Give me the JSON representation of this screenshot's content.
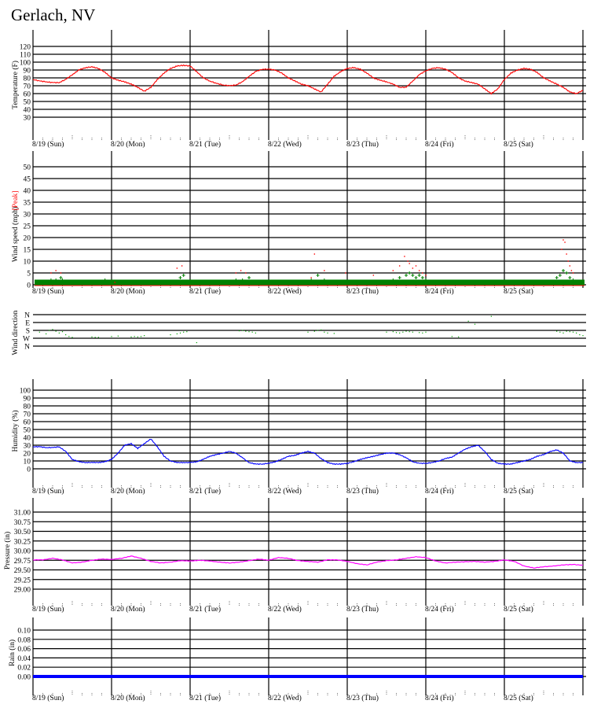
{
  "title": "Gerlach, NV",
  "days": [
    "8/19 (Sun)",
    "8/20 (Mon)",
    "8/21 (Tue)",
    "8/22 (Wed)",
    "8/23 (Thu)",
    "8/24 (Fri)",
    "8/25 (Sat)"
  ],
  "colors": {
    "temperature": "#ff0000",
    "wind_peak": "#ff0000",
    "wind_avg": "#008000",
    "wind_dir": "#00a000",
    "humidity": "#0000ff",
    "pressure": "#ff00ff",
    "rain": "#0000ff",
    "grid": "#000000"
  },
  "chart_data": [
    {
      "id": "temperature",
      "type": "line",
      "ylabel": "Temperature (F)",
      "ylim": [
        20,
        130
      ],
      "yticks": [
        "30",
        "40",
        "50",
        "60",
        "70",
        "80",
        "90",
        "100",
        "110",
        "120"
      ],
      "x": [
        0,
        2,
        4,
        6,
        8,
        10,
        12,
        14,
        16,
        18,
        20,
        22,
        24,
        26,
        28,
        30,
        32,
        34,
        36,
        38,
        40,
        42,
        44,
        46,
        48,
        50,
        52,
        54,
        56,
        58,
        60,
        62,
        64,
        66,
        68,
        70,
        72,
        74,
        76,
        78,
        80,
        82,
        84,
        86,
        88,
        90,
        92,
        94,
        96,
        98,
        100,
        102,
        104,
        106,
        108,
        110,
        112,
        114,
        116,
        118,
        120,
        122,
        124,
        126,
        128,
        130,
        132,
        134,
        136,
        138,
        140,
        142,
        144,
        146,
        148,
        150,
        152,
        154,
        156,
        158,
        160,
        162,
        164,
        166,
        168
      ],
      "y": [
        78,
        76,
        75,
        74,
        74,
        78,
        84,
        90,
        93,
        94,
        92,
        87,
        80,
        77,
        75,
        72,
        68,
        63,
        68,
        78,
        86,
        92,
        95,
        96,
        95,
        88,
        80,
        76,
        73,
        71,
        70,
        71,
        75,
        82,
        88,
        91,
        91,
        90,
        86,
        80,
        76,
        72,
        70,
        66,
        62,
        72,
        82,
        88,
        92,
        93,
        91,
        86,
        80,
        77,
        75,
        72,
        68,
        68,
        76,
        84,
        89,
        92,
        93,
        91,
        87,
        80,
        76,
        74,
        72,
        66,
        60,
        66,
        78,
        86,
        90,
        92,
        91,
        87,
        80,
        76,
        72,
        68,
        62,
        60,
        64
      ]
    },
    {
      "id": "wind",
      "type": "scatter",
      "ylabel": "Wind speed (mph)",
      "ylabel_peak": "[Peak]",
      "ylim": [
        0,
        55
      ],
      "yticks": [
        "0",
        "5",
        "10",
        "15",
        "20",
        "25",
        "30",
        "35",
        "40",
        "45",
        "50"
      ],
      "series": [
        {
          "name": "Peak",
          "x": [
            5.5,
            7,
            8.5,
            22,
            25,
            44,
            45.5,
            62,
            63.5,
            65,
            85,
            86,
            89,
            95.5,
            104,
            110,
            112,
            113.5,
            114.5,
            115,
            116,
            117,
            118,
            119,
            120,
            161.5,
            162,
            162.5,
            163,
            163.5,
            164,
            164.5,
            165
          ],
          "y": [
            5,
            6,
            5,
            2,
            1,
            7,
            8,
            5,
            6,
            5,
            3,
            13,
            6,
            5,
            4,
            6,
            8,
            12,
            10,
            9,
            7,
            8,
            6,
            5,
            4,
            15,
            19,
            18,
            13,
            10,
            8,
            6,
            5
          ]
        },
        {
          "name": "Wind",
          "x": [
            2,
            5.5,
            7,
            8.5,
            9,
            22,
            45,
            46,
            62,
            64,
            66,
            85,
            87,
            89,
            110,
            112,
            114,
            115,
            116,
            117,
            118,
            119,
            120,
            160,
            161,
            162,
            163,
            164,
            165
          ],
          "y": [
            1,
            2,
            2,
            3,
            2,
            2,
            3,
            4,
            2,
            2,
            3,
            2,
            4,
            2,
            2,
            3,
            4,
            5,
            4,
            3,
            4,
            3,
            2,
            3,
            4,
            6,
            5,
            3,
            2
          ]
        }
      ]
    },
    {
      "id": "wind_direction",
      "type": "scatter",
      "ylabel": "Wind direction",
      "categories": [
        "N",
        "E",
        "S",
        "W",
        "N"
      ],
      "x": [
        2,
        4,
        5,
        6,
        7,
        8,
        9,
        10,
        11,
        12,
        18,
        19,
        20,
        24,
        26,
        30,
        31,
        32,
        33,
        34,
        42,
        44,
        45,
        46,
        47,
        50,
        63,
        64,
        65,
        66,
        67,
        68,
        84,
        86,
        87,
        88,
        89,
        90,
        92,
        108,
        110,
        111,
        112,
        113,
        114,
        115,
        116,
        118,
        119,
        120,
        128,
        130,
        133,
        135,
        140,
        160,
        161,
        162,
        163,
        164,
        165,
        166,
        167,
        168
      ],
      "y": [
        200,
        220,
        180,
        170,
        190,
        210,
        195,
        230,
        250,
        260,
        255,
        260,
        260,
        250,
        245,
        255,
        250,
        255,
        250,
        240,
        230,
        220,
        210,
        200,
        195,
        320,
        185,
        180,
        190,
        195,
        200,
        210,
        200,
        190,
        180,
        175,
        200,
        210,
        215,
        200,
        195,
        205,
        210,
        200,
        190,
        195,
        200,
        205,
        210,
        200,
        250,
        255,
        75,
        110,
        20,
        190,
        200,
        210,
        190,
        195,
        200,
        210,
        230,
        240
      ]
    },
    {
      "id": "humidity",
      "type": "line",
      "ylabel": "Humidity (%)",
      "ylim": [
        -10,
        110
      ],
      "yticks": [
        "0",
        "10",
        "20",
        "30",
        "40",
        "50",
        "60",
        "70",
        "80",
        "90",
        "100"
      ],
      "x": [
        0,
        2,
        4,
        6,
        8,
        10,
        12,
        14,
        16,
        18,
        20,
        22,
        24,
        26,
        28,
        30,
        32,
        34,
        36,
        38,
        40,
        42,
        44,
        46,
        48,
        50,
        52,
        54,
        56,
        58,
        60,
        62,
        64,
        66,
        68,
        70,
        72,
        74,
        76,
        78,
        80,
        82,
        84,
        86,
        88,
        90,
        92,
        94,
        96,
        98,
        100,
        102,
        104,
        106,
        108,
        110,
        112,
        114,
        116,
        118,
        120,
        122,
        124,
        126,
        128,
        130,
        132,
        134,
        136,
        138,
        140,
        142,
        144,
        146,
        148,
        150,
        152,
        154,
        156,
        158,
        160,
        162,
        164,
        166,
        168
      ],
      "y": [
        28,
        28,
        27,
        27,
        28,
        22,
        12,
        9,
        8,
        8,
        8,
        9,
        12,
        20,
        30,
        32,
        26,
        32,
        38,
        28,
        16,
        10,
        8,
        8,
        8,
        9,
        12,
        16,
        18,
        20,
        22,
        20,
        14,
        8,
        6,
        6,
        7,
        9,
        12,
        16,
        17,
        20,
        22,
        20,
        13,
        8,
        6,
        6,
        7,
        9,
        12,
        14,
        16,
        18,
        20,
        20,
        18,
        14,
        9,
        7,
        7,
        8,
        10,
        13,
        15,
        20,
        25,
        28,
        30,
        22,
        12,
        7,
        6,
        6,
        8,
        10,
        12,
        16,
        18,
        22,
        24,
        20,
        10,
        8,
        8
      ]
    },
    {
      "id": "pressure",
      "type": "line",
      "ylabel": "Pressure (in)",
      "ylim": [
        28.8,
        31.2
      ],
      "yticks": [
        "29.00",
        "29.25",
        "29.50",
        "29.75",
        "30.00",
        "30.25",
        "30.50",
        "30.75",
        "31.00"
      ],
      "x": [
        0,
        3,
        6,
        9,
        12,
        15,
        18,
        21,
        24,
        27,
        30,
        33,
        36,
        39,
        42,
        45,
        48,
        51,
        54,
        57,
        60,
        63,
        66,
        69,
        72,
        75,
        78,
        81,
        84,
        87,
        90,
        93,
        96,
        99,
        102,
        105,
        108,
        111,
        114,
        117,
        120,
        123,
        126,
        129,
        132,
        135,
        138,
        141,
        144,
        147,
        150,
        153,
        156,
        159,
        162,
        165,
        168
      ],
      "y": [
        29.76,
        29.76,
        29.8,
        29.76,
        29.68,
        29.7,
        29.75,
        29.78,
        29.77,
        29.8,
        29.86,
        29.8,
        29.72,
        29.68,
        29.7,
        29.74,
        29.73,
        29.75,
        29.73,
        29.7,
        29.68,
        29.7,
        29.74,
        29.78,
        29.75,
        29.82,
        29.8,
        29.74,
        29.72,
        29.7,
        29.76,
        29.76,
        29.72,
        29.66,
        29.63,
        29.7,
        29.74,
        29.76,
        29.8,
        29.84,
        29.82,
        29.73,
        29.68,
        29.7,
        29.71,
        29.72,
        29.7,
        29.72,
        29.76,
        29.72,
        29.6,
        29.55,
        29.58,
        29.6,
        29.63,
        29.64,
        29.62
      ]
    },
    {
      "id": "rain",
      "type": "line",
      "ylabel": "Rain (in)",
      "ylim": [
        -0.01,
        0.11
      ],
      "yticks": [
        "0.00",
        "0.02",
        "0.04",
        "0.06",
        "0.08",
        "0.10"
      ],
      "x": [
        0,
        168
      ],
      "y": [
        0,
        0
      ]
    }
  ]
}
